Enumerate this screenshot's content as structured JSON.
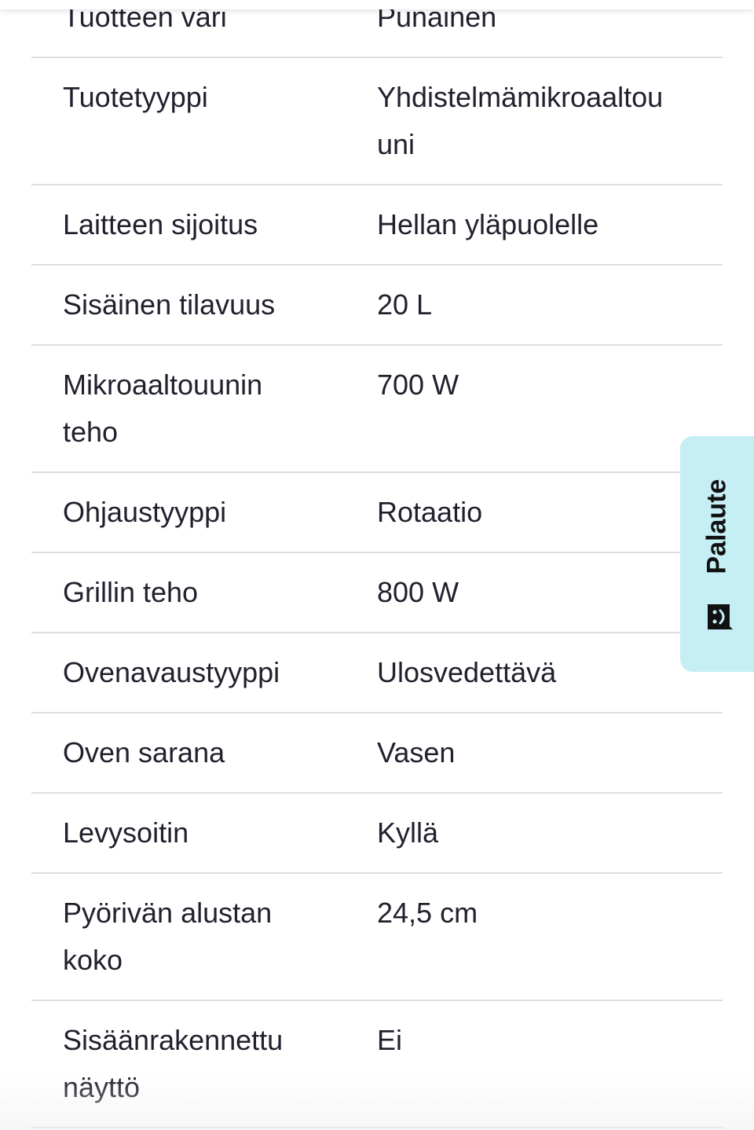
{
  "specs": [
    {
      "label": "Tuotteen väri",
      "value": "Punainen"
    },
    {
      "label": "Tuotetyyppi",
      "value": "Yhdistelmämikroaaltouuni"
    },
    {
      "label": "Laitteen sijoitus",
      "value": "Hellan yläpuolelle"
    },
    {
      "label": "Sisäinen tilavuus",
      "value": "20 L"
    },
    {
      "label": "Mikroaaltouunin teho",
      "value": "700 W"
    },
    {
      "label": "Ohjaustyyppi",
      "value": "Rotaatio"
    },
    {
      "label": "Grillin teho",
      "value": "800 W"
    },
    {
      "label": "Ovenavaustyyppi",
      "value": "Ulosvedettävä"
    },
    {
      "label": "Oven sarana",
      "value": "Vasen"
    },
    {
      "label": "Levysoitin",
      "value": "Kyllä"
    },
    {
      "label": "Pyörivän alustan koko",
      "value": "24,5 cm"
    },
    {
      "label": "Sisäänrakennettu näyttö",
      "value": "Ei"
    }
  ],
  "feedback": {
    "label": "Palaute",
    "icon": "smiley-chat-icon",
    "bg_color": "#c6eef5"
  }
}
